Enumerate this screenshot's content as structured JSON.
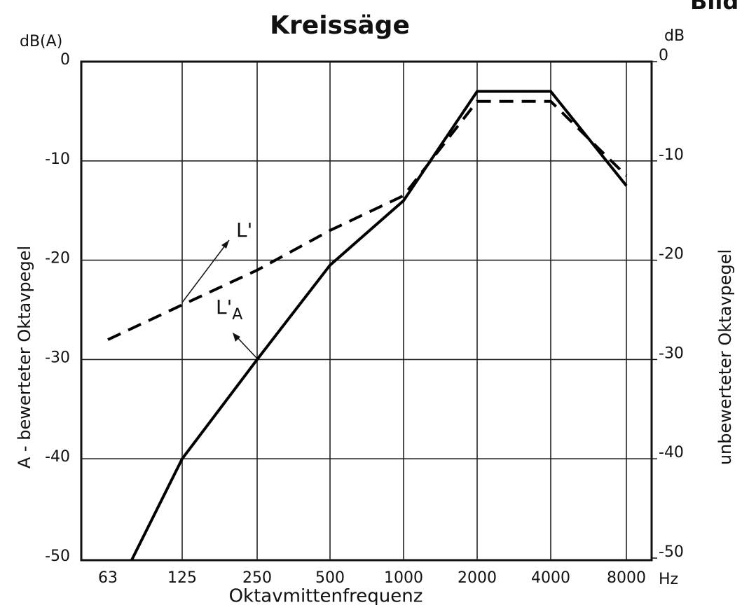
{
  "chart_data": {
    "type": "line",
    "title": "Kreissäge",
    "corner_label": "Bild",
    "y_unit": "dB(A)",
    "y2_unit": "dB",
    "y_label": "A - bewerteter Oktavpegel",
    "y2_label": "unbewerteter Oktavpegel",
    "x_label": "Oktavmittenfrequenz",
    "x_unit": "Hz",
    "categories": [
      "63",
      "125",
      "250",
      "500",
      "1000",
      "2000",
      "4000",
      "8000"
    ],
    "series": [
      {
        "name": "L'A",
        "color": "#000000",
        "style": "solid",
        "values": [
          -55,
          -40,
          -30,
          -20.5,
          -14,
          -3,
          -3,
          -12.5
        ]
      },
      {
        "name": "L'",
        "color": "#000000",
        "style": "dashed",
        "values": [
          -28,
          -24.5,
          -21,
          -17,
          -13.5,
          -4,
          -4,
          -11.5
        ]
      }
    ],
    "annotations": [
      {
        "text": "L'"
      },
      {
        "text": "L'",
        "sub": "A"
      }
    ],
    "ylim": [
      -50,
      0
    ],
    "yticks": [
      0,
      -10,
      -20,
      -30,
      -40,
      -50
    ],
    "y2lim": [
      -50,
      0
    ],
    "y2ticks": [
      0,
      -10,
      -20,
      -30,
      -40,
      -50
    ],
    "grid": true
  }
}
